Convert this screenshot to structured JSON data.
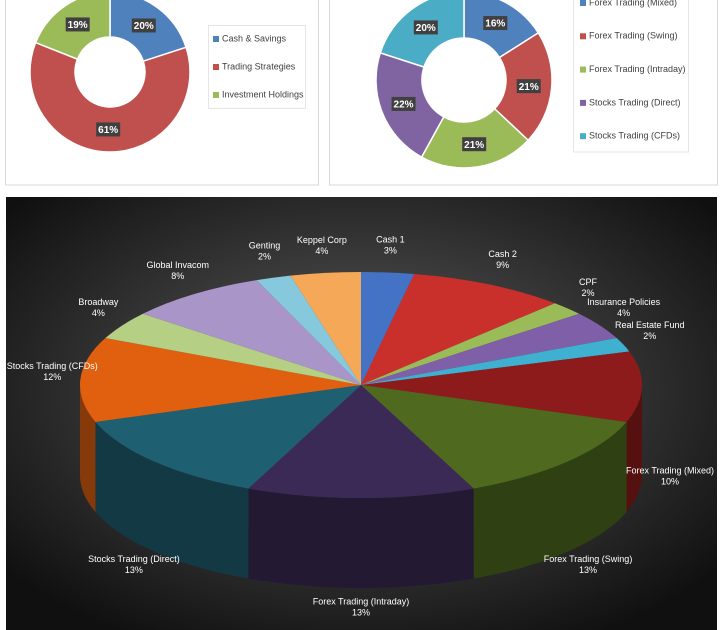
{
  "chart_data": [
    {
      "type": "donut",
      "categories": [
        "Cash & Savings",
        "Trading Strategies",
        "Investment Holdings"
      ],
      "values": [
        20,
        61,
        19
      ],
      "value_labels": [
        "20%",
        "61%",
        "19%"
      ],
      "colors": [
        "#4f81bd",
        "#c0504d",
        "#9bbb59"
      ]
    },
    {
      "type": "donut",
      "categories": [
        "Forex Trading (Mixed)",
        "Forex Trading (Swing)",
        "Forex Trading (Intraday)",
        "Stocks Trading (Direct)",
        "Stocks Trading (CFDs)"
      ],
      "values": [
        16,
        21,
        21,
        22,
        20
      ],
      "value_labels": [
        "16%",
        "21%",
        "21%",
        "22%",
        "20%"
      ],
      "colors": [
        "#4f81bd",
        "#c0504d",
        "#9bbb59",
        "#8064a2",
        "#4bacc6"
      ]
    },
    {
      "type": "pie3d",
      "categories": [
        "Cash 1",
        "Cash 2",
        "CPF",
        "Insurance Policies",
        "Real Estate Fund",
        "Forex Trading (Mixed)",
        "Forex Trading (Swing)",
        "Forex Trading (Intraday)",
        "Stocks Trading (Direct)",
        "Stocks Trading (CFDs)",
        "Broadway",
        "Global Invacom",
        "Genting",
        "Keppel Corp"
      ],
      "values": [
        3,
        9,
        2,
        4,
        2,
        10,
        13,
        13,
        13,
        12,
        4,
        8,
        2,
        4
      ],
      "value_labels": [
        "3%",
        "9%",
        "2%",
        "4%",
        "2%",
        "10%",
        "13%",
        "13%",
        "13%",
        "12%",
        "4%",
        "8%",
        "2%",
        "4%"
      ],
      "colors": [
        "#4472c4",
        "#c9302c",
        "#9bbb59",
        "#7f5fa8",
        "#3fb0d0",
        "#8e1b1b",
        "#4f6a1e",
        "#3a2a55",
        "#1f5f72",
        "#e06010",
        "#b5cf85",
        "#a995c8",
        "#86c8dc",
        "#f5a857"
      ]
    }
  ]
}
